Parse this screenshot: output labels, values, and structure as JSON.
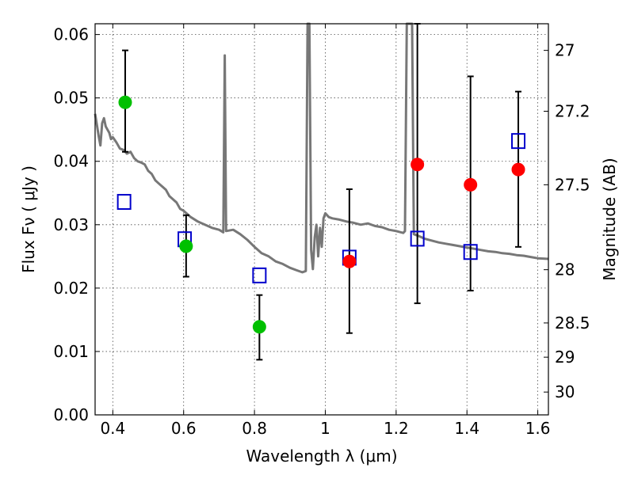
{
  "chart_data": {
    "type": "scatter",
    "xlabel": "Wavelength  λ (μm)",
    "ylabel": "Flux  Fν  ( μJy )",
    "y2label": "Magnitude (AB)",
    "xlim": [
      0.35,
      1.63
    ],
    "ylim": [
      0.0,
      0.0617
    ],
    "grid": true,
    "x_ticks": [
      0.4,
      0.6,
      0.8,
      1.0,
      1.2,
      1.4,
      1.6
    ],
    "x_tick_labels": [
      "0.4",
      "0.6",
      "0.8",
      "1",
      "1.2",
      "1.4",
      "1.6"
    ],
    "y_ticks": [
      0.0,
      0.01,
      0.02,
      0.03,
      0.04,
      0.05,
      0.06
    ],
    "y_tick_labels": [
      "0.00",
      "0.01",
      "0.02",
      "0.03",
      "0.04",
      "0.05",
      "0.06"
    ],
    "y2_ticks": [
      {
        "label": "27",
        "flux": 0.0575
      },
      {
        "label": "27.2",
        "flux": 0.0479
      },
      {
        "label": "27.5",
        "flux": 0.0363
      },
      {
        "label": "28",
        "flux": 0.0229
      },
      {
        "label": "28.5",
        "flux": 0.0145
      },
      {
        "label": "29",
        "flux": 0.0091
      },
      {
        "label": "30",
        "flux": 0.0036
      }
    ],
    "colors": {
      "sed": "#777777",
      "green": "#00c000",
      "red": "#ff0000",
      "model": "#0000cc",
      "errorbar": "#000000"
    },
    "sed_curve": [
      [
        0.35,
        0.0475
      ],
      [
        0.36,
        0.044
      ],
      [
        0.365,
        0.0425
      ],
      [
        0.37,
        0.046
      ],
      [
        0.375,
        0.0468
      ],
      [
        0.38,
        0.0455
      ],
      [
        0.385,
        0.045
      ],
      [
        0.39,
        0.0445
      ],
      [
        0.395,
        0.0435
      ],
      [
        0.4,
        0.0438
      ],
      [
        0.41,
        0.043
      ],
      [
        0.42,
        0.042
      ],
      [
        0.43,
        0.0418
      ],
      [
        0.44,
        0.0412
      ],
      [
        0.45,
        0.0415
      ],
      [
        0.46,
        0.0405
      ],
      [
        0.47,
        0.04
      ],
      [
        0.48,
        0.0398
      ],
      [
        0.49,
        0.0395
      ],
      [
        0.5,
        0.0385
      ],
      [
        0.51,
        0.038
      ],
      [
        0.52,
        0.037
      ],
      [
        0.53,
        0.0365
      ],
      [
        0.54,
        0.036
      ],
      [
        0.55,
        0.0355
      ],
      [
        0.56,
        0.0345
      ],
      [
        0.57,
        0.034
      ],
      [
        0.58,
        0.0335
      ],
      [
        0.59,
        0.0325
      ],
      [
        0.6,
        0.0322
      ],
      [
        0.62,
        0.0312
      ],
      [
        0.64,
        0.0305
      ],
      [
        0.66,
        0.03
      ],
      [
        0.68,
        0.0295
      ],
      [
        0.7,
        0.0292
      ],
      [
        0.712,
        0.0288
      ],
      [
        0.716,
        0.0567
      ],
      [
        0.72,
        0.029
      ],
      [
        0.74,
        0.0292
      ],
      [
        0.76,
        0.0285
      ],
      [
        0.78,
        0.0276
      ],
      [
        0.8,
        0.0265
      ],
      [
        0.82,
        0.0255
      ],
      [
        0.84,
        0.025
      ],
      [
        0.86,
        0.0242
      ],
      [
        0.88,
        0.0238
      ],
      [
        0.9,
        0.0232
      ],
      [
        0.92,
        0.0228
      ],
      [
        0.935,
        0.0225
      ],
      [
        0.945,
        0.0227
      ],
      [
        0.95,
        0.0617
      ],
      [
        0.955,
        0.0617
      ],
      [
        0.96,
        0.026
      ],
      [
        0.965,
        0.023
      ],
      [
        0.97,
        0.028
      ],
      [
        0.975,
        0.03
      ],
      [
        0.98,
        0.025
      ],
      [
        0.985,
        0.0295
      ],
      [
        0.99,
        0.0265
      ],
      [
        0.995,
        0.031
      ],
      [
        1.0,
        0.0318
      ],
      [
        1.01,
        0.0312
      ],
      [
        1.02,
        0.031
      ],
      [
        1.04,
        0.0308
      ],
      [
        1.06,
        0.0305
      ],
      [
        1.08,
        0.0303
      ],
      [
        1.1,
        0.03
      ],
      [
        1.12,
        0.0302
      ],
      [
        1.14,
        0.0298
      ],
      [
        1.16,
        0.0296
      ],
      [
        1.18,
        0.0292
      ],
      [
        1.2,
        0.029
      ],
      [
        1.22,
        0.0287
      ],
      [
        1.225,
        0.029
      ],
      [
        1.23,
        0.0617
      ],
      [
        1.245,
        0.0617
      ],
      [
        1.25,
        0.0285
      ],
      [
        1.26,
        0.0283
      ],
      [
        1.28,
        0.0278
      ],
      [
        1.3,
        0.0275
      ],
      [
        1.32,
        0.0272
      ],
      [
        1.34,
        0.027
      ],
      [
        1.36,
        0.0268
      ],
      [
        1.38,
        0.0266
      ],
      [
        1.4,
        0.0264
      ],
      [
        1.42,
        0.0262
      ],
      [
        1.44,
        0.026
      ],
      [
        1.46,
        0.0258
      ],
      [
        1.48,
        0.0257
      ],
      [
        1.5,
        0.0255
      ],
      [
        1.52,
        0.0254
      ],
      [
        1.54,
        0.0252
      ],
      [
        1.56,
        0.0251
      ],
      [
        1.58,
        0.0249
      ],
      [
        1.6,
        0.0247
      ],
      [
        1.63,
        0.0246
      ]
    ],
    "series": [
      {
        "marker": "circle-green",
        "points": [
          {
            "x": 0.435,
            "y": 0.0493,
            "err_low": 0.0415,
            "err_high": 0.0575
          },
          {
            "x": 0.607,
            "y": 0.0266,
            "err_low": 0.0218,
            "err_high": 0.0315
          },
          {
            "x": 0.814,
            "y": 0.0139,
            "err_low": 0.0087,
            "err_high": 0.0189
          }
        ]
      },
      {
        "marker": "circle-red",
        "points": [
          {
            "x": 1.068,
            "y": 0.0242,
            "err_low": 0.0129,
            "err_high": 0.0356
          },
          {
            "x": 1.26,
            "y": 0.0395,
            "err_low": 0.0176,
            "err_high": 0.0617
          },
          {
            "x": 1.41,
            "y": 0.0363,
            "err_low": 0.0196,
            "err_high": 0.0534
          },
          {
            "x": 1.545,
            "y": 0.0387,
            "err_low": 0.0265,
            "err_high": 0.051
          }
        ]
      },
      {
        "marker": "square-blue",
        "points": [
          {
            "x": 0.432,
            "y": 0.0336
          },
          {
            "x": 0.603,
            "y": 0.0277
          },
          {
            "x": 0.814,
            "y": 0.022
          },
          {
            "x": 1.068,
            "y": 0.0248
          },
          {
            "x": 1.26,
            "y": 0.0278
          },
          {
            "x": 1.41,
            "y": 0.0257
          },
          {
            "x": 1.545,
            "y": 0.0432
          }
        ]
      }
    ]
  }
}
